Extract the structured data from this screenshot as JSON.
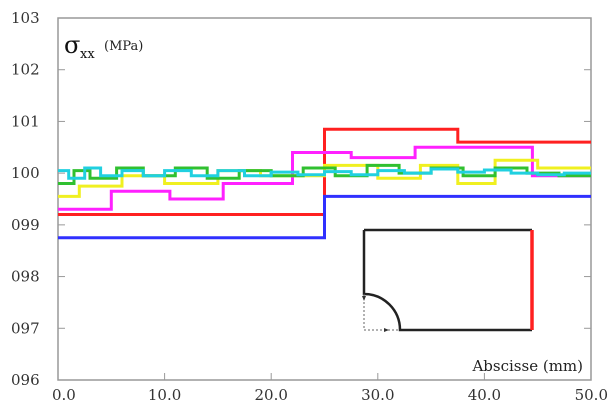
{
  "chart_data": {
    "type": "line",
    "step": true,
    "xlim": [
      0,
      50
    ],
    "ylim": [
      96,
      103
    ],
    "x_ticks": [
      0,
      10,
      20,
      30,
      40,
      50
    ],
    "x_tick_labels": [
      "0.0",
      "10.0",
      "20.0",
      "30.0",
      "40.0",
      "50.0"
    ],
    "y_ticks": [
      96,
      97,
      98,
      99,
      100,
      101,
      102,
      103
    ],
    "y_tick_labels": [
      "096",
      "097",
      "098",
      "099",
      "100",
      "101",
      "102",
      "103"
    ],
    "ylabel_symbol": "σ",
    "ylabel_subscript": "xx",
    "ylabel_unit": "(MPa)",
    "xlabel": "Abscisse (mm)",
    "grid": false,
    "series": [
      {
        "color": "#ff2020",
        "x": [
          0,
          25,
          25,
          37.5,
          37.5,
          50
        ],
        "y": [
          99.2,
          99.2,
          100.85,
          100.85,
          100.6,
          100.6
        ]
      },
      {
        "color": "#3030ff",
        "x": [
          0,
          25,
          25,
          50
        ],
        "y": [
          98.75,
          98.75,
          99.55,
          99.55
        ]
      },
      {
        "color": "#ff20ff",
        "x": [
          0,
          5,
          5,
          10.5,
          10.5,
          15.5,
          15.5,
          22,
          22,
          27.5,
          27.5,
          33.5,
          33.5,
          44.5,
          44.5,
          50
        ],
        "y": [
          99.3,
          99.3,
          99.65,
          99.65,
          99.5,
          99.5,
          99.8,
          99.8,
          100.4,
          100.4,
          100.3,
          100.3,
          100.5,
          100.5,
          99.95,
          99.95
        ]
      },
      {
        "color": "#f0f020",
        "x": [
          0,
          2,
          2,
          6,
          6,
          10,
          10,
          15,
          15,
          19,
          19,
          25,
          25,
          30,
          30,
          34,
          34,
          37.5,
          37.5,
          41,
          41,
          45,
          45,
          50
        ],
        "y": [
          99.55,
          99.55,
          99.75,
          99.75,
          99.95,
          99.95,
          99.8,
          99.8,
          100.05,
          100.05,
          99.95,
          99.95,
          100.15,
          100.15,
          99.9,
          99.9,
          100.15,
          100.15,
          99.8,
          99.8,
          100.25,
          100.25,
          100.1,
          100.1
        ]
      },
      {
        "color": "#30c030",
        "x": [
          0,
          1.5,
          1.5,
          3,
          3,
          5.5,
          5.5,
          8,
          8,
          11,
          11,
          14,
          14,
          17,
          17,
          20,
          20,
          23,
          23,
          26,
          26,
          29,
          29,
          32,
          32,
          35,
          35,
          38,
          38,
          41,
          41,
          44,
          44,
          47,
          47,
          50
        ],
        "y": [
          99.8,
          99.8,
          100.05,
          100.05,
          99.9,
          99.9,
          100.1,
          100.1,
          99.95,
          99.95,
          100.1,
          100.1,
          99.9,
          99.9,
          100.05,
          100.05,
          99.95,
          99.95,
          100.1,
          100.1,
          99.95,
          99.95,
          100.15,
          100.15,
          100.0,
          100.0,
          100.1,
          100.1,
          99.95,
          99.95,
          100.1,
          100.1,
          100.0,
          100.0,
          99.95,
          99.95
        ]
      },
      {
        "color": "#20d0e0",
        "x": [
          0,
          1,
          1,
          2.5,
          2.5,
          4,
          4,
          6,
          6,
          8,
          8,
          10,
          10,
          12.5,
          12.5,
          15,
          15,
          17.5,
          17.5,
          20,
          20,
          22.5,
          22.5,
          25,
          25,
          27.5,
          27.5,
          30,
          30,
          32.5,
          32.5,
          35,
          35,
          37.5,
          37.5,
          40,
          40,
          42.5,
          42.5,
          45,
          45,
          47.5,
          47.5,
          50
        ],
        "y": [
          100.05,
          100.05,
          99.9,
          99.9,
          100.1,
          100.1,
          99.95,
          99.95,
          100.05,
          100.05,
          99.95,
          99.95,
          100.05,
          100.05,
          99.95,
          99.95,
          100.05,
          100.05,
          99.95,
          99.95,
          100.02,
          100.02,
          99.97,
          99.97,
          100.03,
          100.03,
          99.97,
          99.97,
          100.05,
          100.05,
          100.0,
          100.0,
          100.08,
          100.08,
          100.02,
          100.02,
          100.06,
          100.06,
          100.0,
          100.0,
          99.97,
          99.97,
          100.0,
          100.0
        ]
      }
    ]
  }
}
